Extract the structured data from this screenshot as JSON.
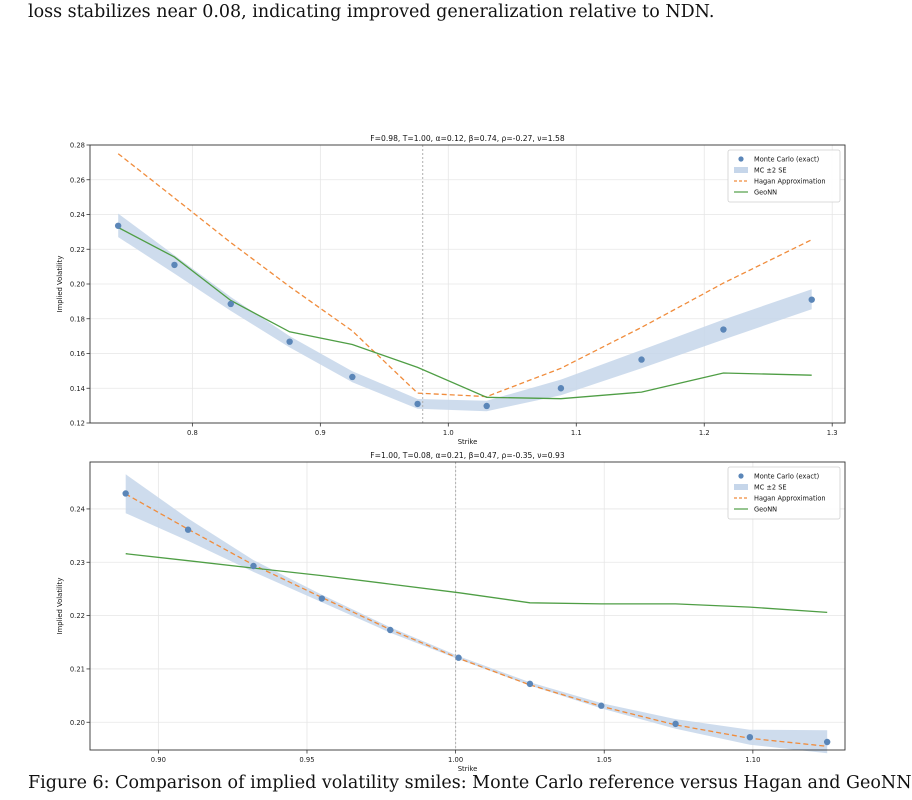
{
  "paper": {
    "top_text": "loss stabilizes near 0.08, indicating improved generalization relative to NDN.",
    "bottom_text": "Figure 6: Comparison of implied volatility smiles: Monte Carlo reference versus Hagan and GeoNN"
  },
  "colors": {
    "mc_points": "#5b86b8",
    "mc_band": "#c6d6ea",
    "hagan": "#f08c3c",
    "geonn": "#4f9e45",
    "grid": "#e6e6e6",
    "atm_line": "#b0b0b0"
  },
  "chart_data": [
    {
      "type": "line",
      "title": "F=0.98, T=1.00, α=0.12, β=0.74, ρ=-0.27, ν=1.58",
      "xlabel": "Strike",
      "ylabel": "Implied Volatility",
      "xlim": [
        0.72,
        1.31
      ],
      "ylim": [
        0.12,
        0.28
      ],
      "xticks": [
        0.8,
        0.9,
        1.0,
        1.1,
        1.2,
        1.3
      ],
      "xtick_labels": [
        "0.8",
        "0.9",
        "1.0",
        "1.1",
        "1.2",
        "1.3"
      ],
      "yticks": [
        0.12,
        0.14,
        0.16,
        0.18,
        0.2,
        0.22,
        0.24,
        0.26,
        0.28
      ],
      "ytick_labels": [
        "0.12",
        "0.14",
        "0.16",
        "0.18",
        "0.20",
        "0.22",
        "0.24",
        "0.26",
        "0.28"
      ],
      "grid": true,
      "atm_strike": 0.98,
      "legend_position": "top-right",
      "legend": [
        "Monte Carlo (exact)",
        "MC ±2 SE",
        "Hagan Approximation",
        "GeoNN"
      ],
      "series": [
        {
          "name": "Monte Carlo (exact)",
          "kind": "scatter",
          "x": [
            0.742,
            0.786,
            0.83,
            0.876,
            0.925,
            0.976,
            1.03,
            1.088,
            1.151,
            1.215,
            1.284
          ],
          "values": [
            0.2335,
            0.211,
            0.1885,
            0.1668,
            0.1465,
            0.131,
            0.1298,
            0.14,
            0.1565,
            0.1738,
            0.191
          ]
        },
        {
          "name": "MC ±2 SE",
          "kind": "band",
          "x": [
            0.742,
            0.786,
            0.83,
            0.876,
            0.925,
            0.976,
            1.03,
            1.088,
            1.151,
            1.215,
            1.284
          ],
          "lower": [
            0.227,
            0.206,
            0.1845,
            0.1635,
            0.1435,
            0.1282,
            0.1268,
            0.136,
            0.1515,
            0.168,
            0.1855
          ],
          "upper": [
            0.2405,
            0.2165,
            0.1925,
            0.17,
            0.1498,
            0.1338,
            0.1328,
            0.145,
            0.162,
            0.1795,
            0.197
          ]
        },
        {
          "name": "Hagan Approximation",
          "kind": "dashed",
          "x": [
            0.742,
            0.786,
            0.83,
            0.876,
            0.925,
            0.976,
            1.03,
            1.088,
            1.151,
            1.215,
            1.284
          ],
          "values": [
            0.275,
            0.2495,
            0.2238,
            0.1985,
            0.173,
            0.1372,
            0.1352,
            0.1515,
            0.175,
            0.2005,
            0.2255
          ]
        },
        {
          "name": "GeoNN",
          "kind": "line",
          "x": [
            0.742,
            0.786,
            0.83,
            0.876,
            0.925,
            0.976,
            1.03,
            1.088,
            1.151,
            1.215,
            1.284
          ],
          "values": [
            0.2325,
            0.2155,
            0.1905,
            0.1725,
            0.1652,
            0.152,
            0.1348,
            0.134,
            0.1378,
            0.1488,
            0.1475
          ]
        }
      ]
    },
    {
      "type": "line",
      "title": "F=1.00, T=0.08, α=0.21, β=0.47, ρ=-0.35, ν=0.93",
      "xlabel": "Strike",
      "ylabel": "Implied Volatility",
      "xlim": [
        0.877,
        1.131
      ],
      "ylim": [
        0.1948,
        0.2488
      ],
      "xticks": [
        0.9,
        0.95,
        1.0,
        1.05,
        1.1
      ],
      "xtick_labels": [
        "0.90",
        "0.95",
        "1.00",
        "1.05",
        "1.10"
      ],
      "yticks": [
        0.2,
        0.21,
        0.22,
        0.23,
        0.24
      ],
      "ytick_labels": [
        "0.20",
        "0.21",
        "0.22",
        "0.23",
        "0.24"
      ],
      "grid": true,
      "atm_strike": 1.0,
      "legend_position": "top-right",
      "legend": [
        "Monte Carlo (exact)",
        "MC ±2 SE",
        "Hagan Approximation",
        "GeoNN"
      ],
      "series": [
        {
          "name": "Monte Carlo (exact)",
          "kind": "scatter",
          "x": [
            0.889,
            0.91,
            0.932,
            0.955,
            0.978,
            1.001,
            1.025,
            1.049,
            1.074,
            1.099,
            1.125
          ],
          "values": [
            0.2429,
            0.2361,
            0.2293,
            0.2232,
            0.2173,
            0.2121,
            0.2072,
            0.2031,
            0.1997,
            0.1972,
            0.1963
          ]
        },
        {
          "name": "MC ±2 SE",
          "kind": "band",
          "x": [
            0.889,
            0.91,
            0.932,
            0.955,
            0.978,
            1.001,
            1.025,
            1.049,
            1.074,
            1.099,
            1.125
          ],
          "lower": [
            0.2392,
            0.234,
            0.2282,
            0.2225,
            0.2168,
            0.2118,
            0.2069,
            0.2026,
            0.1988,
            0.1958,
            0.1942
          ],
          "upper": [
            0.2465,
            0.2382,
            0.2304,
            0.2239,
            0.2178,
            0.2124,
            0.2075,
            0.2036,
            0.2006,
            0.1986,
            0.1985
          ]
        },
        {
          "name": "Hagan Approximation",
          "kind": "dashed",
          "x": [
            0.889,
            0.91,
            0.932,
            0.955,
            0.978,
            1.001,
            1.025,
            1.049,
            1.074,
            1.099,
            1.125
          ],
          "values": [
            0.2428,
            0.2362,
            0.2295,
            0.2234,
            0.2174,
            0.212,
            0.207,
            0.203,
            0.1995,
            0.197,
            0.1955
          ]
        },
        {
          "name": "GeoNN",
          "kind": "line",
          "x": [
            0.889,
            0.91,
            0.932,
            0.955,
            0.978,
            1.001,
            1.025,
            1.049,
            1.074,
            1.099,
            1.125
          ],
          "values": [
            0.2316,
            0.2303,
            0.2289,
            0.2275,
            0.2259,
            0.2243,
            0.2224,
            0.2222,
            0.2222,
            0.2216,
            0.2206
          ]
        }
      ]
    }
  ]
}
